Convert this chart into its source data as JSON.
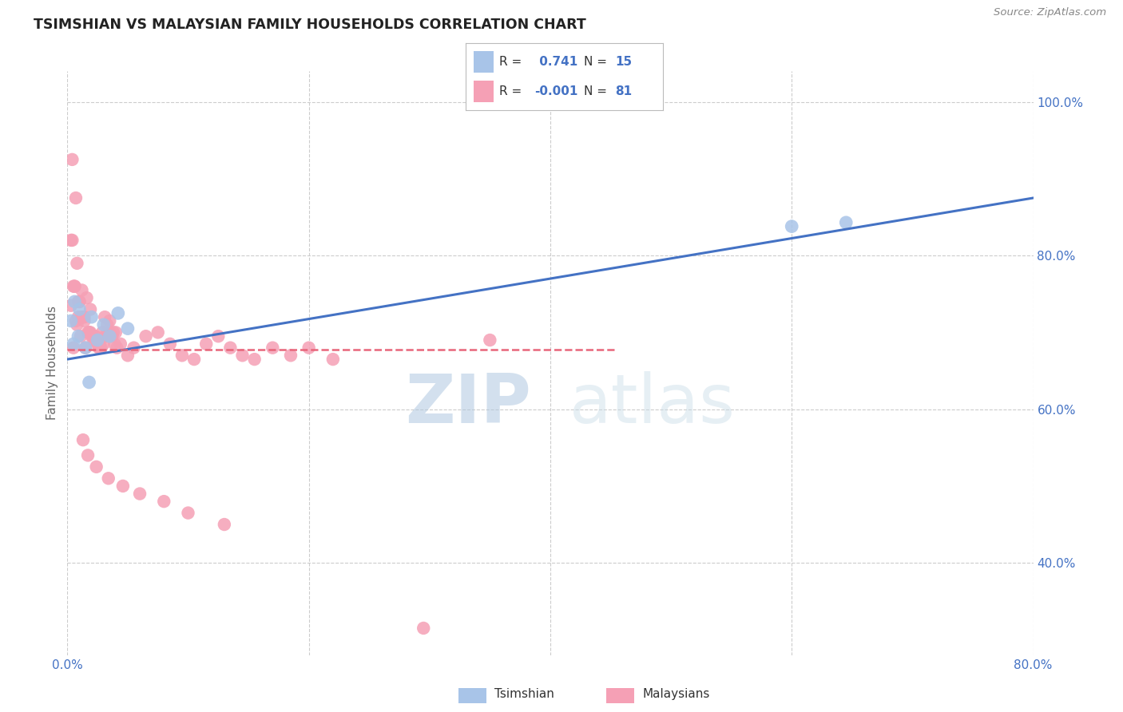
{
  "title": "TSIMSHIAN VS MALAYSIAN FAMILY HOUSEHOLDS CORRELATION CHART",
  "source": "Source: ZipAtlas.com",
  "xlabel_tsimshian": "Tsimshian",
  "xlabel_malaysians": "Malaysians",
  "ylabel": "Family Households",
  "watermark_zip": "ZIP",
  "watermark_atlas": "atlas",
  "xlim": [
    0.0,
    0.8
  ],
  "ylim": [
    0.28,
    1.04
  ],
  "xticks": [
    0.0,
    0.2,
    0.4,
    0.6,
    0.8
  ],
  "xtick_labels": [
    "0.0%",
    "",
    "",
    "",
    "80.0%"
  ],
  "yticks": [
    0.4,
    0.6,
    0.8,
    1.0
  ],
  "ytick_labels": [
    "40.0%",
    "60.0%",
    "80.0%",
    "100.0%"
  ],
  "grid_color": "#cccccc",
  "background_color": "#ffffff",
  "tsimshian_color": "#a8c4e8",
  "malaysian_color": "#f5a0b5",
  "tsimshian_line_color": "#4472c4",
  "malaysian_line_color": "#e8657a",
  "tsimshian_R": 0.741,
  "tsimshian_N": 15,
  "malaysian_R": -0.001,
  "malaysian_N": 81,
  "tsimshian_line_x": [
    0.0,
    0.8
  ],
  "tsimshian_line_y": [
    0.665,
    0.875
  ],
  "malaysian_line_x": [
    0.0,
    0.455
  ],
  "malaysian_line_y": [
    0.678,
    0.678
  ],
  "tsimshian_x": [
    0.003,
    0.005,
    0.006,
    0.009,
    0.01,
    0.015,
    0.018,
    0.02,
    0.025,
    0.03,
    0.035,
    0.042,
    0.05,
    0.6,
    0.645
  ],
  "tsimshian_y": [
    0.715,
    0.685,
    0.74,
    0.695,
    0.73,
    0.68,
    0.635,
    0.72,
    0.69,
    0.71,
    0.695,
    0.725,
    0.705,
    0.838,
    0.843
  ],
  "malaysian_x": [
    0.004,
    0.007,
    0.003,
    0.005,
    0.009,
    0.012,
    0.016,
    0.019,
    0.022,
    0.026,
    0.004,
    0.008,
    0.006,
    0.01,
    0.014,
    0.018,
    0.023,
    0.027,
    0.031,
    0.035,
    0.005,
    0.009,
    0.013,
    0.017,
    0.021,
    0.025,
    0.029,
    0.033,
    0.037,
    0.041,
    0.003,
    0.007,
    0.011,
    0.015,
    0.019,
    0.023,
    0.027,
    0.031,
    0.035,
    0.039,
    0.006,
    0.01,
    0.014,
    0.018,
    0.022,
    0.028,
    0.032,
    0.038,
    0.044,
    0.05,
    0.008,
    0.012,
    0.02,
    0.03,
    0.04,
    0.055,
    0.065,
    0.075,
    0.085,
    0.095,
    0.105,
    0.115,
    0.125,
    0.135,
    0.145,
    0.155,
    0.17,
    0.185,
    0.2,
    0.22,
    0.013,
    0.017,
    0.024,
    0.034,
    0.046,
    0.06,
    0.08,
    0.1,
    0.13,
    0.35,
    0.295
  ],
  "malaysian_y": [
    0.925,
    0.875,
    0.82,
    0.68,
    0.72,
    0.755,
    0.745,
    0.73,
    0.695,
    0.68,
    0.82,
    0.79,
    0.76,
    0.74,
    0.72,
    0.7,
    0.695,
    0.68,
    0.72,
    0.715,
    0.76,
    0.74,
    0.72,
    0.7,
    0.695,
    0.685,
    0.7,
    0.71,
    0.695,
    0.68,
    0.735,
    0.715,
    0.695,
    0.68,
    0.7,
    0.69,
    0.68,
    0.695,
    0.7,
    0.685,
    0.76,
    0.74,
    0.715,
    0.7,
    0.69,
    0.68,
    0.695,
    0.7,
    0.685,
    0.67,
    0.71,
    0.72,
    0.695,
    0.685,
    0.7,
    0.68,
    0.695,
    0.7,
    0.685,
    0.67,
    0.665,
    0.685,
    0.695,
    0.68,
    0.67,
    0.665,
    0.68,
    0.67,
    0.68,
    0.665,
    0.56,
    0.54,
    0.525,
    0.51,
    0.5,
    0.49,
    0.48,
    0.465,
    0.45,
    0.69,
    0.315
  ]
}
